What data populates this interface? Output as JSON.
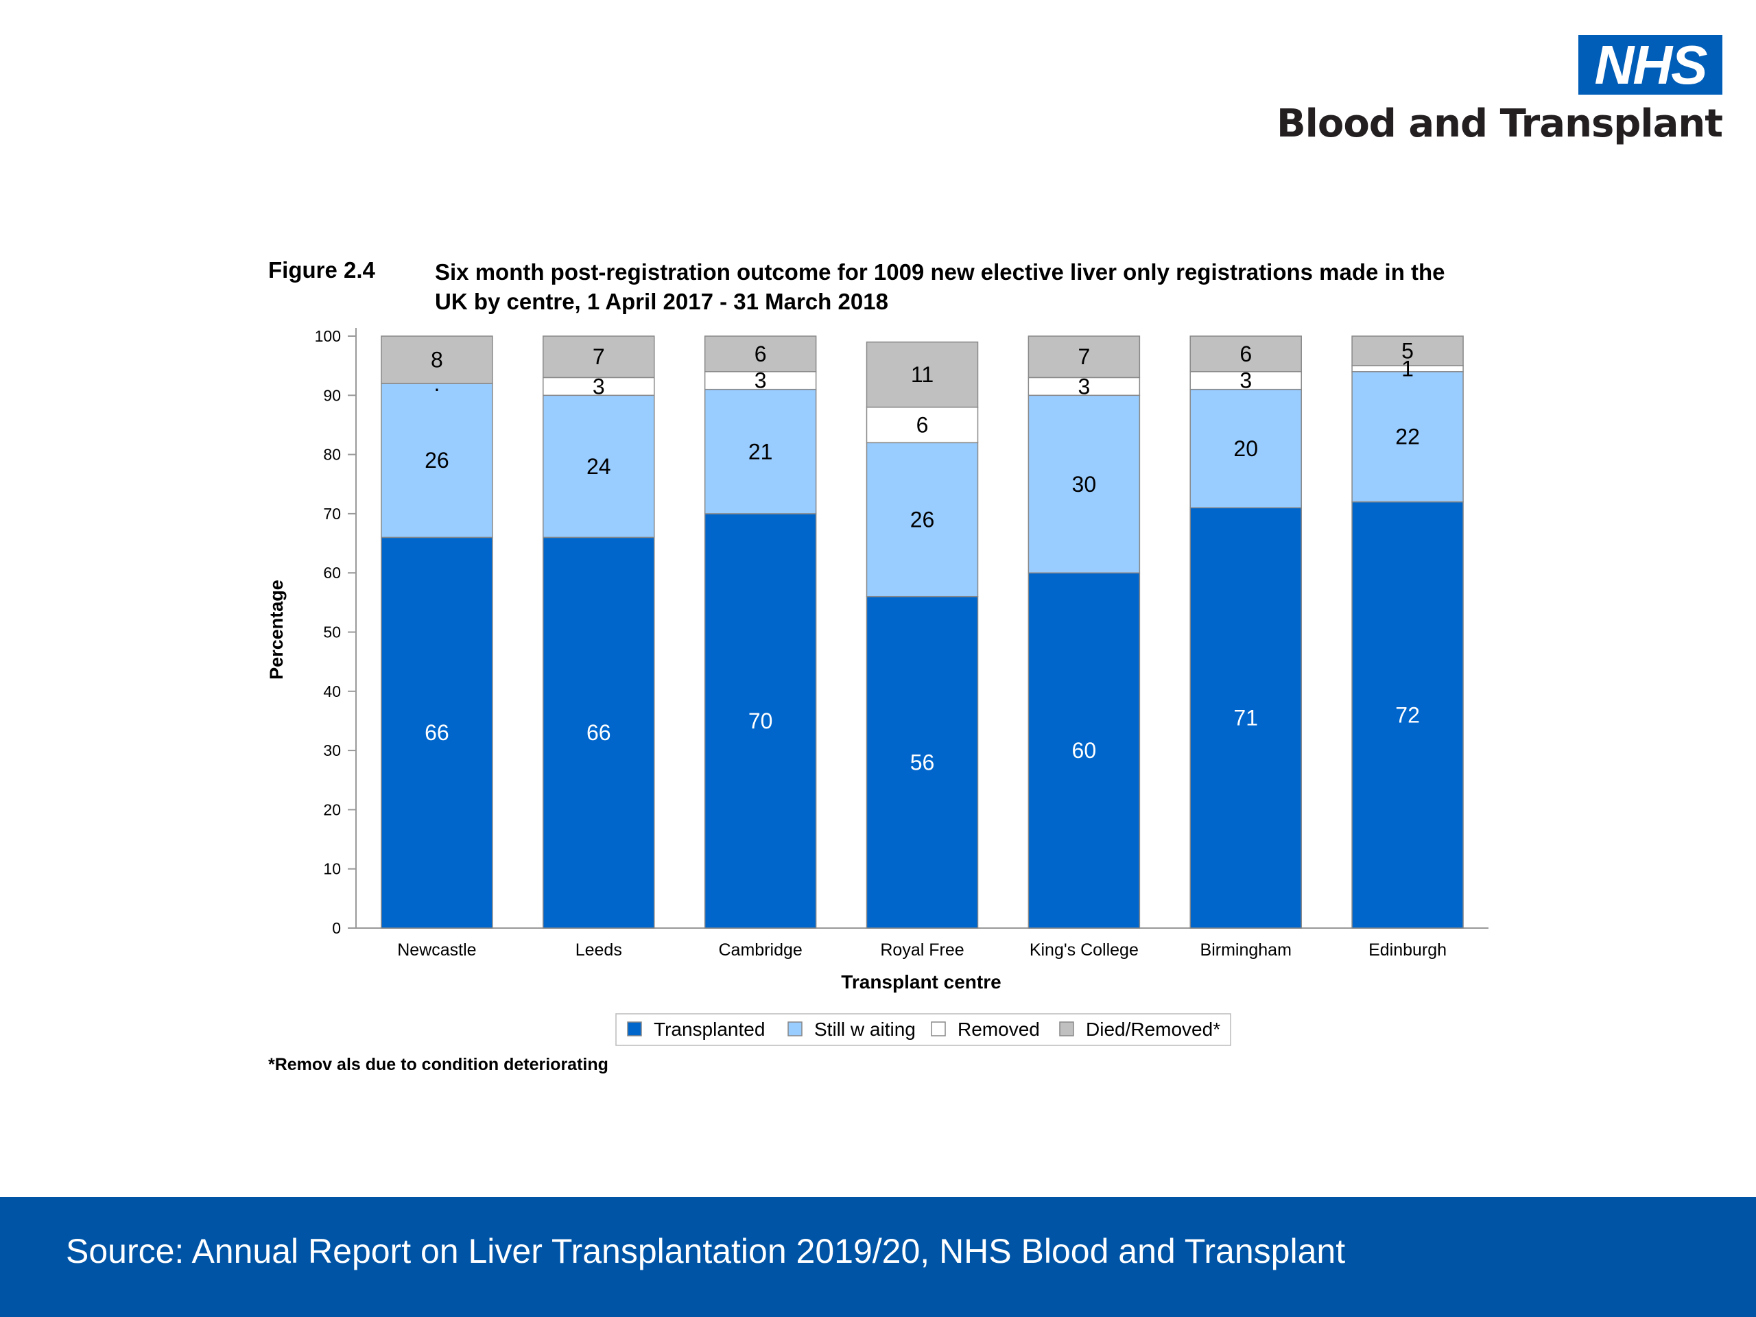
{
  "logo": {
    "wordmark": "NHS",
    "organisation": "Blood and Transplant"
  },
  "figure": {
    "number": "Figure 2.4",
    "title": "Six month post-registration outcome for 1009 new elective liver only registrations made in the UK by centre, 1 April 2017 - 31 March 2018"
  },
  "chart_data": {
    "type": "bar",
    "stacked": true,
    "categories": [
      "Newcastle",
      "Leeds",
      "Cambridge",
      "Royal Free",
      "King's College",
      "Birmingham",
      "Edinburgh"
    ],
    "series": [
      {
        "name": "Transplanted",
        "color": "#0066cc",
        "label_color": "#ffffff",
        "values": [
          66,
          66,
          70,
          56,
          60,
          71,
          72
        ]
      },
      {
        "name": "Still waiting",
        "color": "#99ccff",
        "label_color": "#000000",
        "values": [
          26,
          24,
          21,
          26,
          30,
          20,
          22
        ]
      },
      {
        "name": "Removed",
        "color": "#ffffff",
        "label_color": "#000000",
        "values": [
          0,
          3,
          3,
          6,
          3,
          3,
          1
        ]
      },
      {
        "name": "Died/Removed*",
        "color": "#c0c0c0",
        "label_color": "#000000",
        "values": [
          8,
          7,
          6,
          11,
          7,
          6,
          5
        ]
      }
    ],
    "data_labels": {
      "Transplanted": [
        "66",
        "66",
        "70",
        "56",
        "60",
        "71",
        "72"
      ],
      "Still waiting": [
        "26",
        "24",
        "21",
        "26",
        "30",
        "20",
        "22"
      ],
      "Removed": [
        ".",
        "3",
        "3",
        "6",
        "3",
        "3",
        "1"
      ],
      "Died/Removed*": [
        "8",
        "7",
        "6",
        "11",
        "7",
        "6",
        "5"
      ]
    },
    "legend_labels": [
      "Transplanted",
      "Still w aiting",
      "Removed",
      "Died/Removed*"
    ],
    "xlabel": "Transplant centre",
    "ylabel": "Percentage",
    "ylim": [
      0,
      100
    ],
    "yticks": [
      0,
      10,
      20,
      30,
      40,
      50,
      60,
      70,
      80,
      90,
      100
    ],
    "grid": false,
    "legend_position": "bottom"
  },
  "footnote": "*Remov als due to condition deteriorating",
  "footer": {
    "source": "Source: Annual Report on Liver Transplantation 2019/20, NHS Blood and Transplant"
  }
}
